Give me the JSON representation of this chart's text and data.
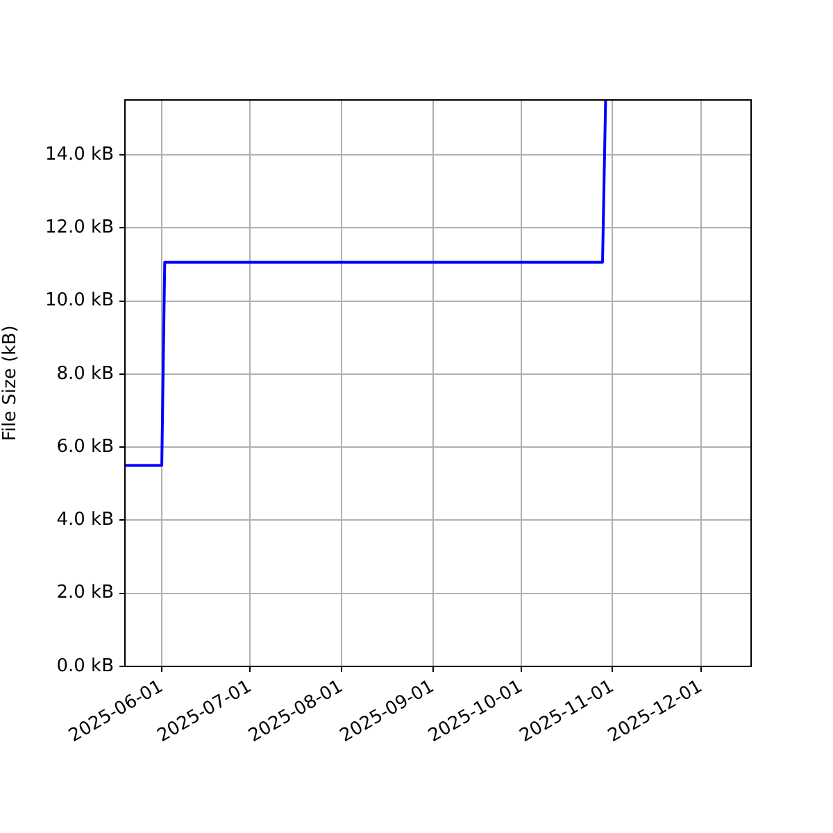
{
  "chart_data": {
    "type": "line",
    "ylabel": "File Size (kB)",
    "x": [
      "2025-05-19T12:00",
      "2025-06-01",
      "2025-06-02",
      "2025-10-28T14:00",
      "2025-10-29T15:00"
    ],
    "values": [
      5.5,
      5.5,
      11.06,
      11.06,
      15.5
    ],
    "color": "#0000ff",
    "xlim": [
      "2025-05-19T12:00",
      "2025-12-18"
    ],
    "ylim": [
      0,
      15.5
    ],
    "xticks": [
      "2025-06-01",
      "2025-07-01",
      "2025-08-01",
      "2025-09-01",
      "2025-10-01",
      "2025-11-01",
      "2025-12-01"
    ],
    "yticks": [
      {
        "value": 0,
        "label": "0.0 kB"
      },
      {
        "value": 2,
        "label": "2.0 kB"
      },
      {
        "value": 4,
        "label": "4.0 kB"
      },
      {
        "value": 6,
        "label": "6.0 kB"
      },
      {
        "value": 8,
        "label": "8.0 kB"
      },
      {
        "value": 10,
        "label": "10.0 kB"
      },
      {
        "value": 12,
        "label": "12.0 kB"
      },
      {
        "value": 14,
        "label": "14.0 kB"
      }
    ],
    "grid": true,
    "marker": "none",
    "line_style": "solid"
  }
}
